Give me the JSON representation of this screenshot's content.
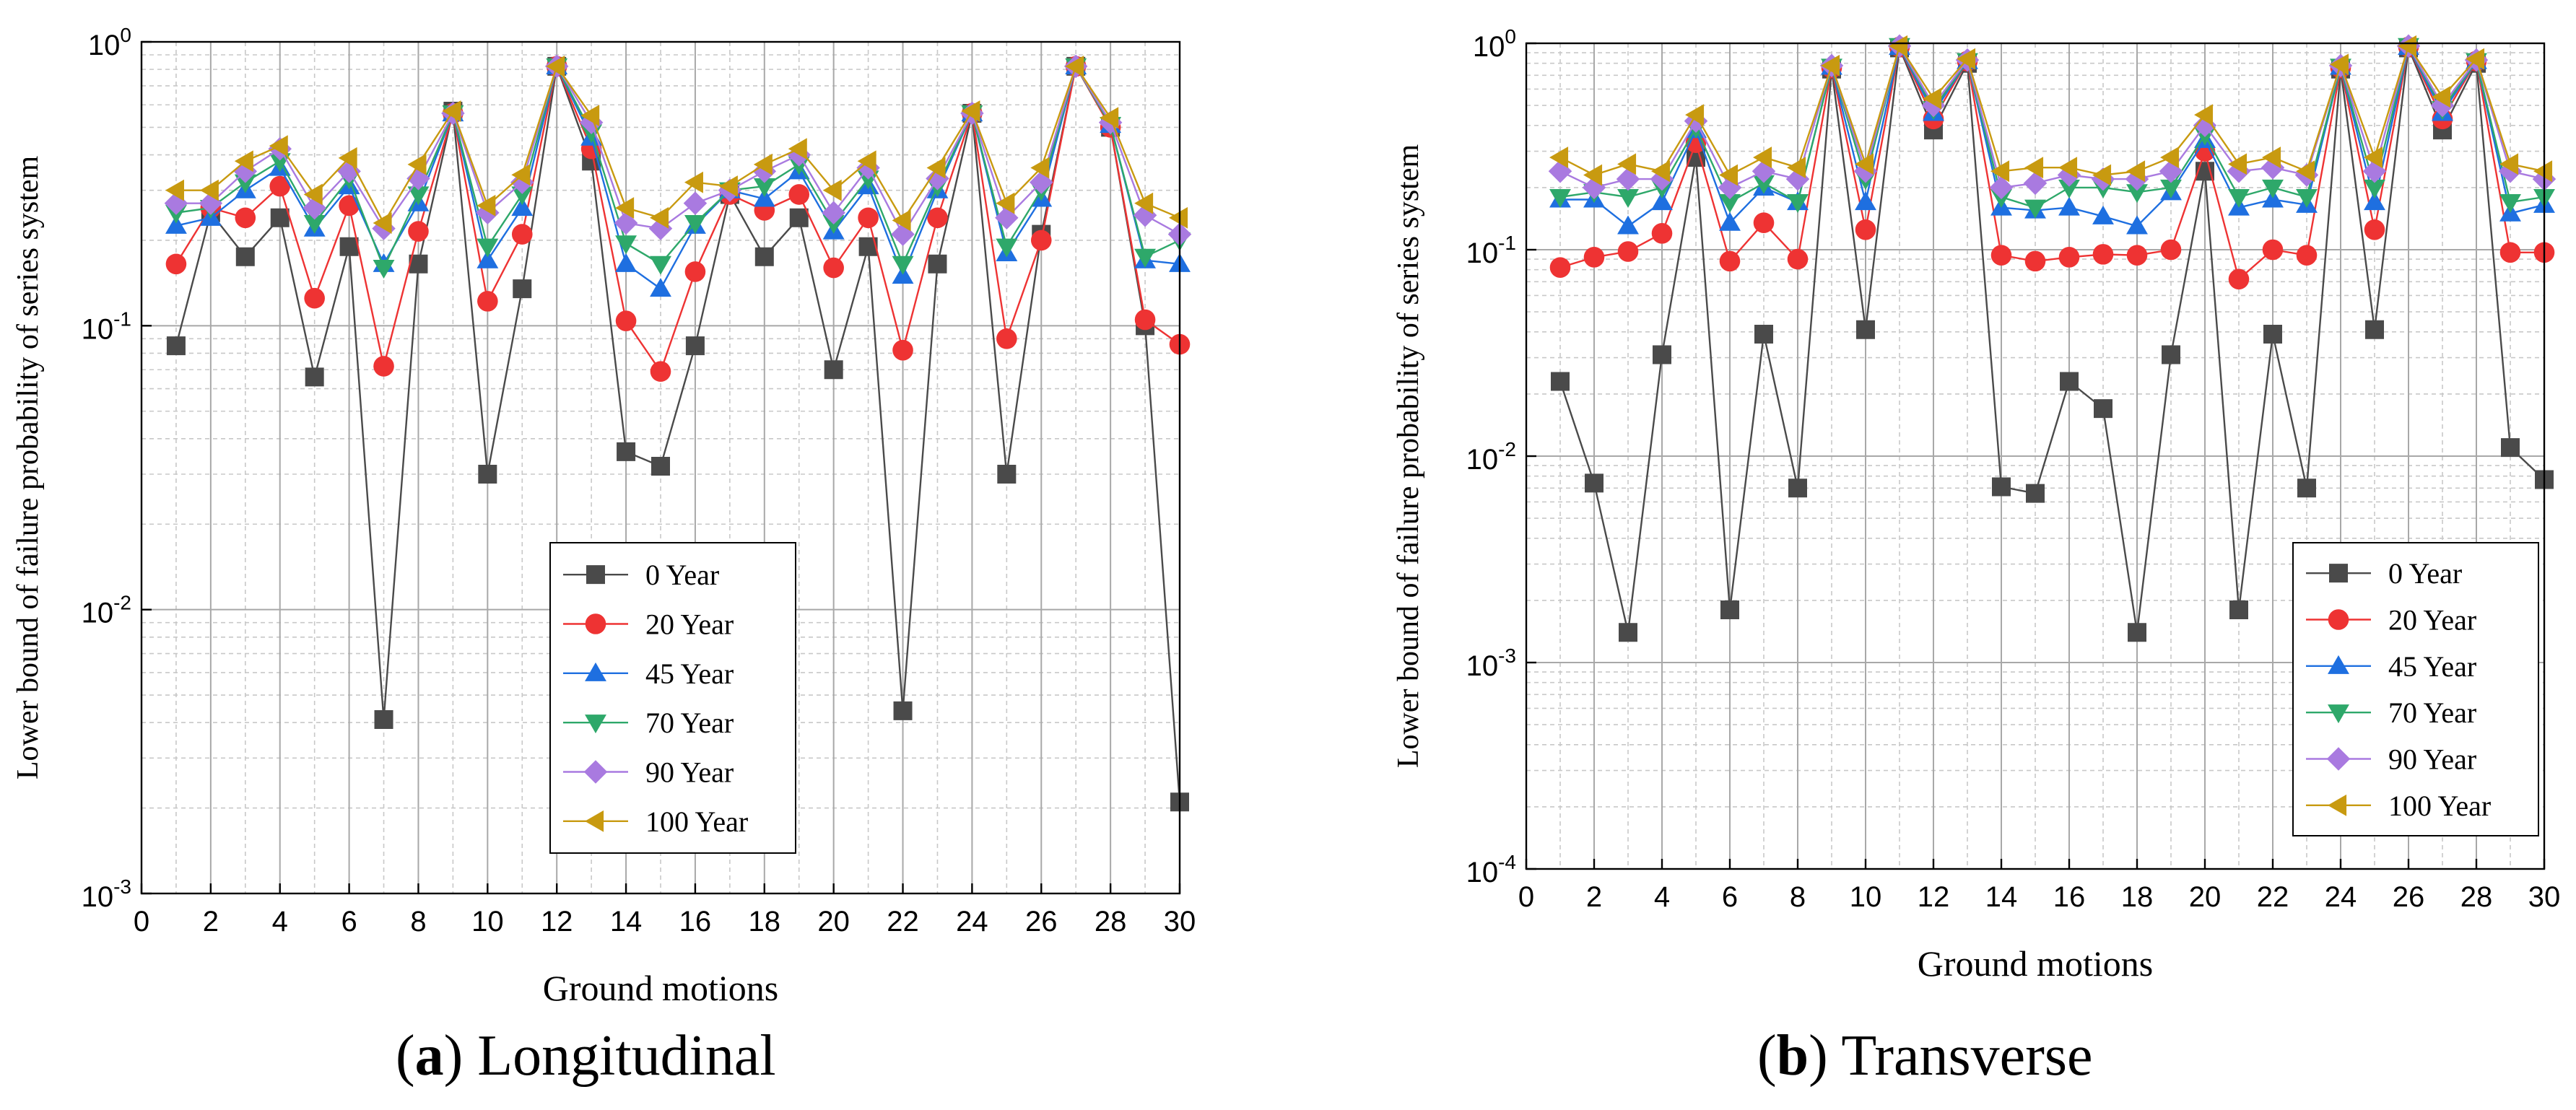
{
  "figure": {
    "panels": [
      {
        "caption_open": "(",
        "caption_letter": "a",
        "caption_close": ")",
        "caption_text": "Longitudinal"
      },
      {
        "caption_open": "(",
        "caption_letter": "b",
        "caption_close": ")",
        "caption_text": "Transverse"
      }
    ]
  },
  "chart_data": [
    {
      "type": "line",
      "title": "",
      "xlabel": "Ground motions",
      "ylabel": "Lower bound of failure probability of series system",
      "xlim": [
        0,
        30
      ],
      "ylim": [
        0.001,
        1
      ],
      "yscale": "log",
      "x_ticks": [
        0,
        2,
        4,
        6,
        8,
        10,
        12,
        14,
        16,
        18,
        20,
        22,
        24,
        26,
        28,
        30
      ],
      "y_ticks": [
        {
          "value": 0.001,
          "base": "10",
          "exp": "-3"
        },
        {
          "value": 0.01,
          "base": "10",
          "exp": "-2"
        },
        {
          "value": 0.1,
          "base": "10",
          "exp": "-1"
        },
        {
          "value": 1,
          "base": "10",
          "exp": "0"
        }
      ],
      "grid": true,
      "legend_position": "lower-right",
      "x": [
        1,
        2,
        3,
        4,
        5,
        6,
        7,
        8,
        9,
        10,
        11,
        12,
        13,
        14,
        15,
        16,
        17,
        18,
        19,
        20,
        21,
        22,
        23,
        24,
        25,
        26,
        27,
        28,
        29,
        30
      ],
      "series": [
        {
          "name": "0 Year",
          "marker": "square",
          "color": "#4a4a4a",
          "values": [
            0.085,
            0.25,
            0.175,
            0.24,
            0.066,
            0.19,
            0.0041,
            0.165,
            0.57,
            0.03,
            0.135,
            0.82,
            0.38,
            0.036,
            0.032,
            0.085,
            0.29,
            0.175,
            0.24,
            0.07,
            0.19,
            0.0044,
            0.165,
            0.56,
            0.03,
            0.21,
            0.82,
            0.5,
            0.1,
            0.0021
          ]
        },
        {
          "name": "20 Year",
          "marker": "circle",
          "color": "#ee3333",
          "values": [
            0.165,
            0.26,
            0.24,
            0.31,
            0.125,
            0.265,
            0.072,
            0.215,
            0.56,
            0.122,
            0.21,
            0.82,
            0.42,
            0.104,
            0.069,
            0.155,
            0.29,
            0.255,
            0.29,
            0.16,
            0.24,
            0.082,
            0.24,
            0.56,
            0.09,
            0.2,
            0.82,
            0.5,
            0.105,
            0.086
          ]
        },
        {
          "name": "45 Year",
          "marker": "triangle-up",
          "color": "#1e6fe0",
          "values": [
            0.225,
            0.24,
            0.3,
            0.36,
            0.22,
            0.31,
            0.165,
            0.27,
            0.56,
            0.17,
            0.26,
            0.82,
            0.46,
            0.165,
            0.135,
            0.225,
            0.3,
            0.28,
            0.35,
            0.215,
            0.31,
            0.15,
            0.3,
            0.56,
            0.18,
            0.28,
            0.82,
            0.51,
            0.17,
            0.165
          ]
        },
        {
          "name": "70 Year",
          "marker": "triangle-down",
          "color": "#2ea86a",
          "values": [
            0.25,
            0.26,
            0.32,
            0.38,
            0.23,
            0.33,
            0.16,
            0.29,
            0.56,
            0.19,
            0.29,
            0.82,
            0.48,
            0.195,
            0.165,
            0.23,
            0.3,
            0.31,
            0.37,
            0.23,
            0.33,
            0.165,
            0.31,
            0.56,
            0.19,
            0.3,
            0.82,
            0.51,
            0.175,
            0.2
          ]
        },
        {
          "name": "90 Year",
          "marker": "diamond",
          "color": "#a97ae0",
          "values": [
            0.27,
            0.27,
            0.35,
            0.42,
            0.26,
            0.35,
            0.22,
            0.33,
            0.56,
            0.25,
            0.32,
            0.82,
            0.52,
            0.23,
            0.22,
            0.27,
            0.3,
            0.35,
            0.4,
            0.25,
            0.36,
            0.21,
            0.33,
            0.56,
            0.24,
            0.32,
            0.82,
            0.52,
            0.245,
            0.21
          ]
        },
        {
          "name": "100 Year",
          "marker": "triangle-left",
          "color": "#c89a10",
          "values": [
            0.3,
            0.3,
            0.38,
            0.43,
            0.29,
            0.39,
            0.23,
            0.37,
            0.57,
            0.265,
            0.34,
            0.82,
            0.55,
            0.26,
            0.24,
            0.32,
            0.31,
            0.37,
            0.42,
            0.3,
            0.38,
            0.235,
            0.36,
            0.57,
            0.27,
            0.36,
            0.82,
            0.54,
            0.27,
            0.24
          ]
        }
      ]
    },
    {
      "type": "line",
      "title": "",
      "xlabel": "Ground motions",
      "ylabel": "Lower bound of failure probability of series system",
      "xlim": [
        0,
        30
      ],
      "ylim": [
        0.0001,
        1
      ],
      "yscale": "log",
      "x_ticks": [
        0,
        2,
        4,
        6,
        8,
        10,
        12,
        14,
        16,
        18,
        20,
        22,
        24,
        26,
        28,
        30
      ],
      "y_ticks": [
        {
          "value": 0.0001,
          "base": "10",
          "exp": "-4"
        },
        {
          "value": 0.001,
          "base": "10",
          "exp": "-3"
        },
        {
          "value": 0.01,
          "base": "10",
          "exp": "-2"
        },
        {
          "value": 0.1,
          "base": "10",
          "exp": "-1"
        },
        {
          "value": 1,
          "base": "10",
          "exp": "0"
        }
      ],
      "grid": true,
      "legend_position": "lower-right",
      "x": [
        1,
        2,
        3,
        4,
        5,
        6,
        7,
        8,
        9,
        10,
        11,
        12,
        13,
        14,
        15,
        16,
        17,
        18,
        19,
        20,
        21,
        22,
        23,
        24,
        25,
        26,
        27,
        28,
        29,
        30
      ],
      "series": [
        {
          "name": "0 Year",
          "marker": "square",
          "color": "#4a4a4a",
          "values": [
            0.023,
            0.0074,
            0.0014,
            0.031,
            0.28,
            0.0018,
            0.039,
            0.007,
            0.75,
            0.041,
            0.95,
            0.38,
            0.8,
            0.0071,
            0.0066,
            0.023,
            0.017,
            0.0014,
            0.031,
            0.24,
            0.0018,
            0.039,
            0.007,
            0.75,
            0.041,
            0.95,
            0.38,
            0.8,
            0.011,
            0.0077
          ]
        },
        {
          "name": "20 Year",
          "marker": "circle",
          "color": "#ee3333",
          "values": [
            0.082,
            0.092,
            0.098,
            0.12,
            0.33,
            0.088,
            0.135,
            0.09,
            0.76,
            0.125,
            0.96,
            0.43,
            0.82,
            0.094,
            0.088,
            0.092,
            0.095,
            0.094,
            0.1,
            0.3,
            0.072,
            0.1,
            0.094,
            0.76,
            0.125,
            0.96,
            0.43,
            0.82,
            0.097,
            0.097
          ]
        },
        {
          "name": "45 Year",
          "marker": "triangle-up",
          "color": "#1e6fe0",
          "values": [
            0.175,
            0.175,
            0.13,
            0.17,
            0.38,
            0.135,
            0.2,
            0.17,
            0.77,
            0.17,
            0.96,
            0.46,
            0.82,
            0.16,
            0.155,
            0.16,
            0.145,
            0.13,
            0.19,
            0.34,
            0.16,
            0.175,
            0.165,
            0.77,
            0.17,
            0.96,
            0.46,
            0.82,
            0.15,
            0.165
          ]
        },
        {
          "name": "70 Year",
          "marker": "triangle-down",
          "color": "#2ea86a",
          "values": [
            0.18,
            0.19,
            0.18,
            0.2,
            0.39,
            0.17,
            0.21,
            0.17,
            0.77,
            0.22,
            0.97,
            0.48,
            0.82,
            0.18,
            0.16,
            0.2,
            0.2,
            0.19,
            0.2,
            0.36,
            0.18,
            0.2,
            0.18,
            0.77,
            0.2,
            0.97,
            0.48,
            0.82,
            0.17,
            0.18
          ]
        },
        {
          "name": "90 Year",
          "marker": "diamond",
          "color": "#a97ae0",
          "values": [
            0.24,
            0.2,
            0.22,
            0.22,
            0.42,
            0.2,
            0.24,
            0.22,
            0.78,
            0.24,
            0.97,
            0.5,
            0.83,
            0.2,
            0.21,
            0.23,
            0.22,
            0.22,
            0.24,
            0.4,
            0.24,
            0.25,
            0.23,
            0.78,
            0.24,
            0.97,
            0.5,
            0.83,
            0.24,
            0.22
          ]
        },
        {
          "name": "100 Year",
          "marker": "triangle-left",
          "color": "#c89a10",
          "values": [
            0.28,
            0.23,
            0.26,
            0.24,
            0.45,
            0.23,
            0.28,
            0.25,
            0.78,
            0.26,
            0.97,
            0.54,
            0.84,
            0.24,
            0.25,
            0.25,
            0.23,
            0.24,
            0.28,
            0.45,
            0.26,
            0.28,
            0.24,
            0.79,
            0.28,
            0.97,
            0.55,
            0.84,
            0.26,
            0.24
          ]
        }
      ]
    }
  ]
}
